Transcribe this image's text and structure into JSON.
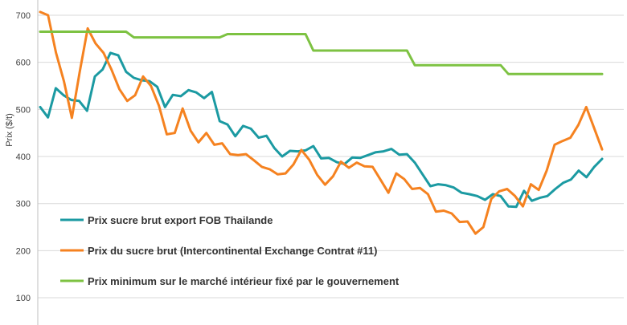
{
  "chart_data": {
    "type": "line",
    "title": "",
    "ylabel": "Prix ($/t)",
    "xlabel": "",
    "ylim": [
      0,
      720
    ],
    "yticks": [
      100,
      200,
      300,
      400,
      500,
      600,
      700
    ],
    "grid": true,
    "legend_position": "bottom-left inside plot",
    "series": [
      {
        "name": "Prix sucre brut export FOB Thailande",
        "color": "#1b9aa2",
        "values": [
          505,
          483,
          545,
          530,
          520,
          518,
          497,
          570,
          585,
          620,
          615,
          580,
          567,
          562,
          560,
          548,
          505,
          531,
          528,
          541,
          536,
          524,
          537,
          475,
          468,
          443,
          465,
          459,
          440,
          444,
          418,
          400,
          412,
          411,
          413,
          422,
          396,
          397,
          388,
          384,
          398,
          397,
          403,
          409,
          411,
          416,
          404,
          405,
          387,
          362,
          337,
          341,
          339,
          334,
          323,
          320,
          316,
          308,
          320,
          316,
          294,
          293,
          327,
          306,
          312,
          316,
          331,
          344,
          351,
          370,
          356,
          378,
          395
        ]
      },
      {
        "name": "Prix du sucre brut (Intercontinental Exchange Contrat #11)",
        "color": "#f58220",
        "values": [
          707,
          700,
          620,
          560,
          482,
          580,
          672,
          640,
          620,
          585,
          543,
          518,
          530,
          570,
          550,
          508,
          447,
          450,
          502,
          455,
          430,
          450,
          425,
          428,
          405,
          403,
          405,
          392,
          378,
          373,
          362,
          364,
          383,
          414,
          393,
          361,
          340,
          358,
          389,
          376,
          387,
          379,
          378,
          351,
          323,
          364,
          352,
          331,
          333,
          320,
          283,
          285,
          279,
          261,
          262,
          236,
          250,
          310,
          326,
          331,
          316,
          294,
          341,
          329,
          370,
          425,
          433,
          440,
          467,
          505,
          460,
          415
        ]
      },
      {
        "name": "Prix minimum sur le marché intérieur fixé par le gouvernement",
        "color": "#7dc242",
        "values": [
          665,
          665,
          665,
          665,
          665,
          665,
          665,
          665,
          665,
          665,
          665,
          665,
          653,
          653,
          653,
          653,
          653,
          653,
          653,
          653,
          653,
          653,
          653,
          653,
          660,
          660,
          660,
          660,
          660,
          660,
          660,
          660,
          660,
          660,
          660,
          625,
          625,
          625,
          625,
          625,
          625,
          625,
          625,
          625,
          625,
          625,
          625,
          625,
          594,
          594,
          594,
          594,
          594,
          594,
          594,
          594,
          594,
          594,
          594,
          594,
          575,
          575,
          575,
          575,
          575,
          575,
          575,
          575,
          575,
          575,
          575,
          575,
          575
        ]
      }
    ]
  }
}
